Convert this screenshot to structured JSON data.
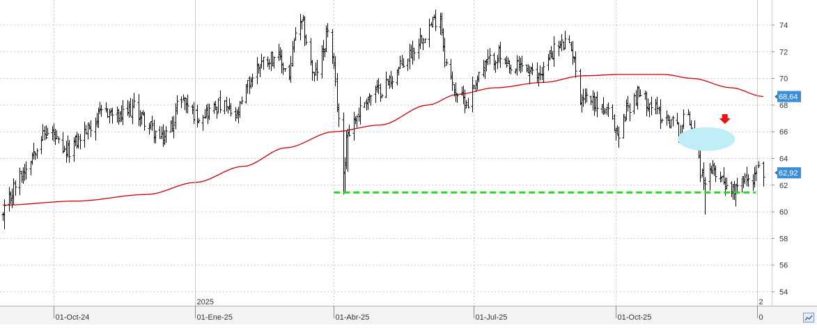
{
  "chart_data": {
    "type": "ohlc",
    "ylim": [
      52.5,
      76
    ],
    "y_ticks": [
      54,
      56,
      58,
      60,
      62,
      64,
      66,
      68,
      70,
      72,
      74
    ],
    "x_domain": [
      "2024-08-29",
      "2026-01-05"
    ],
    "x_ticks": [
      {
        "date": "2024-10-01",
        "label": "01-Oct-24"
      },
      {
        "date": "2025-01-01",
        "label": "01-Ene-25"
      },
      {
        "date": "2025-04-01",
        "label": "01-Abr-25"
      },
      {
        "date": "2025-07-01",
        "label": "01-Jul-25"
      },
      {
        "date": "2025-10-01",
        "label": "01-Oct-25"
      },
      {
        "date": "2026-01-01",
        "label": "0"
      }
    ],
    "year_markers": [
      {
        "date": "2025-01-01",
        "label": "2025"
      },
      {
        "date": "2026-01-01",
        "label": "2"
      }
    ],
    "price_anchors": [
      [
        "2024-08-29",
        59.6
      ],
      [
        "2024-09-05",
        61.8
      ],
      [
        "2024-09-13",
        63.4
      ],
      [
        "2024-09-22",
        65.6
      ],
      [
        "2024-09-30",
        66.0
      ],
      [
        "2024-10-07",
        64.2
      ],
      [
        "2024-10-17",
        65.4
      ],
      [
        "2024-10-27",
        66.8
      ],
      [
        "2024-11-04",
        67.6
      ],
      [
        "2024-11-13",
        67.0
      ],
      [
        "2024-11-22",
        67.8
      ],
      [
        "2024-12-01",
        66.6
      ],
      [
        "2024-12-10",
        65.3
      ],
      [
        "2024-12-17",
        66.6
      ],
      [
        "2024-12-22",
        68.8
      ],
      [
        "2025-01-01",
        67.2
      ],
      [
        "2025-01-10",
        67.6
      ],
      [
        "2025-01-18",
        68.0
      ],
      [
        "2025-01-28",
        67.0
      ],
      [
        "2025-02-04",
        69.5
      ],
      [
        "2025-02-12",
        71.2
      ],
      [
        "2025-02-22",
        71.8
      ],
      [
        "2025-03-03",
        70.2
      ],
      [
        "2025-03-07",
        73.5
      ],
      [
        "2025-03-12",
        74.0
      ],
      [
        "2025-03-19",
        70.0
      ],
      [
        "2025-03-25",
        72.0
      ],
      [
        "2025-03-28",
        73.8
      ],
      [
        "2025-04-01",
        70.5
      ],
      [
        "2025-04-04",
        67.0
      ],
      [
        "2025-04-07",
        62.5
      ],
      [
        "2025-04-09",
        65.8
      ],
      [
        "2025-04-14",
        66.8
      ],
      [
        "2025-04-22",
        68.5
      ],
      [
        "2025-05-02",
        69.2
      ],
      [
        "2025-05-12",
        70.5
      ],
      [
        "2025-05-20",
        71.8
      ],
      [
        "2025-05-30",
        73.5
      ],
      [
        "2025-06-09",
        74.8
      ],
      [
        "2025-06-12",
        71.5
      ],
      [
        "2025-06-17",
        69.5
      ],
      [
        "2025-06-22",
        68.5
      ],
      [
        "2025-06-27",
        68.2
      ],
      [
        "2025-07-03",
        70.2
      ],
      [
        "2025-07-10",
        71.2
      ],
      [
        "2025-07-17",
        71.8
      ],
      [
        "2025-07-24",
        70.4
      ],
      [
        "2025-08-01",
        71.0
      ],
      [
        "2025-08-10",
        70.0
      ],
      [
        "2025-08-15",
        70.8
      ],
      [
        "2025-08-22",
        72.2
      ],
      [
        "2025-08-29",
        72.6
      ],
      [
        "2025-09-04",
        71.8
      ],
      [
        "2025-09-06",
        68.5
      ],
      [
        "2025-09-11",
        68.8
      ],
      [
        "2025-09-20",
        68.0
      ],
      [
        "2025-09-27",
        67.2
      ],
      [
        "2025-10-03",
        65.5
      ],
      [
        "2025-10-07",
        67.5
      ],
      [
        "2025-10-15",
        68.8
      ],
      [
        "2025-10-25",
        68.0
      ],
      [
        "2025-10-30",
        67.2
      ],
      [
        "2025-11-07",
        66.8
      ],
      [
        "2025-11-12",
        66.0
      ],
      [
        "2025-11-16",
        67.8
      ],
      [
        "2025-11-21",
        65.6
      ],
      [
        "2025-11-26",
        62.5
      ],
      [
        "2025-12-01",
        62.6
      ],
      [
        "2025-12-04",
        63.2
      ],
      [
        "2025-12-10",
        62.4
      ],
      [
        "2025-12-16",
        61.6
      ],
      [
        "2025-12-21",
        62.8
      ],
      [
        "2025-12-26",
        62.2
      ],
      [
        "2026-01-02",
        63.2
      ],
      [
        "2026-01-05",
        62.9
      ]
    ],
    "price_color": "#000000",
    "moving_average": {
      "color": "#cc0000",
      "points": [
        [
          "2024-08-29",
          60.5
        ],
        [
          "2024-10-15",
          60.8
        ],
        [
          "2024-12-01",
          61.3
        ],
        [
          "2025-01-01",
          62.2
        ],
        [
          "2025-02-01",
          63.4
        ],
        [
          "2025-03-01",
          64.8
        ],
        [
          "2025-04-01",
          66.0
        ],
        [
          "2025-05-01",
          66.5
        ],
        [
          "2025-06-01",
          68.0
        ],
        [
          "2025-06-20",
          68.8
        ],
        [
          "2025-07-15",
          69.3
        ],
        [
          "2025-08-15",
          69.7
        ],
        [
          "2025-09-10",
          70.2
        ],
        [
          "2025-10-05",
          70.3
        ],
        [
          "2025-11-01",
          70.3
        ],
        [
          "2025-11-20",
          70.0
        ],
        [
          "2025-12-15",
          69.3
        ],
        [
          "2026-01-05",
          68.64
        ]
      ]
    },
    "last_value_labels": [
      {
        "value": 68.64,
        "label": "68,64",
        "color": "#3b8fd8"
      },
      {
        "value": 62.92,
        "label": "62,92",
        "color": "#3b8fd8"
      }
    ],
    "support_line": {
      "value": 61.45,
      "from": "2025-04-01",
      "to": "2025-12-31",
      "color": "#22dd22"
    },
    "highlight_ellipse": {
      "center_date": "2025-11-29",
      "center_value": 65.45,
      "color": "#bfeef7"
    },
    "marker_arrow": {
      "date": "2025-12-11",
      "value": 66.9,
      "color": "#ee1111"
    },
    "grid": true
  }
}
